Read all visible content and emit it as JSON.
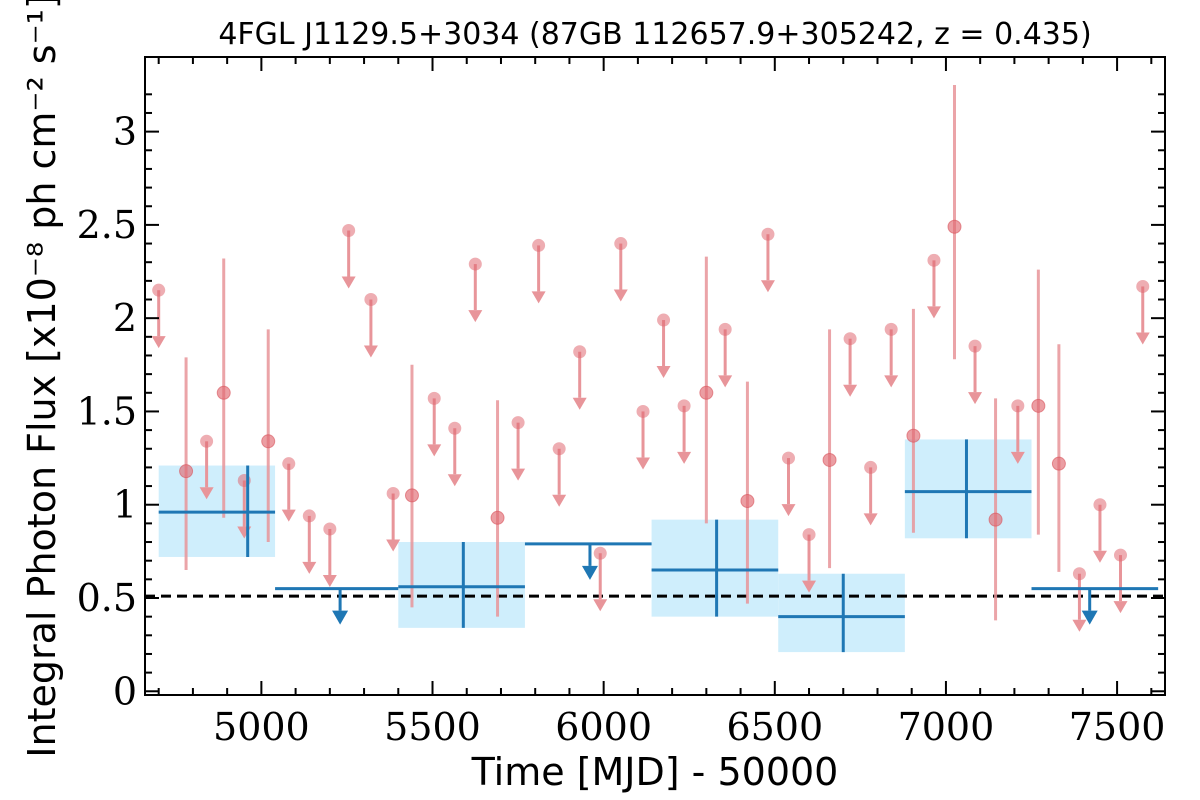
{
  "chart_data": {
    "type": "scatter",
    "title": "4FGL J1129.5+3034 (87GB 112657.9+305242, z = 0.435)",
    "xlabel": "Time [MJD] - 50000",
    "ylabel": "Integral Photon Flux [x10⁻⁸ ph cm⁻² s⁻¹]",
    "xlim": [
      4660,
      7640
    ],
    "ylim": [
      -0.02,
      3.4
    ],
    "x_ticks": [
      5000,
      5500,
      6000,
      6500,
      7000,
      7500
    ],
    "x_tick_labels": [
      "5000",
      "5500",
      "6000",
      "6500",
      "7000",
      "7500"
    ],
    "y_ticks": [
      0,
      0.5,
      1,
      1.5,
      2,
      2.5,
      3
    ],
    "y_tick_labels": [
      "0",
      "0.5",
      "1",
      "1.5",
      "2",
      "2.5",
      "3"
    ],
    "reference_line": {
      "y": 0.51,
      "style": "dashed",
      "color": "#000000"
    },
    "colors": {
      "short_bins": "#e8959a",
      "long_bins": "#1f77b4",
      "long_bins_box": "#cfeefc"
    },
    "series": [
      {
        "points": [
          {
            "x": 4780,
            "y": 1.18,
            "lo": 0.65,
            "hi": 1.79
          },
          {
            "x": 4890,
            "y": 1.6,
            "lo": 0.93,
            "hi": 2.32
          },
          {
            "x": 5020,
            "y": 1.34,
            "lo": 0.8,
            "hi": 1.94
          },
          {
            "x": 5440,
            "y": 1.05,
            "lo": 0.45,
            "hi": 1.75
          },
          {
            "x": 5690,
            "y": 0.93,
            "lo": 0.4,
            "hi": 1.56
          },
          {
            "x": 6300,
            "y": 1.6,
            "lo": 0.9,
            "hi": 2.33
          },
          {
            "x": 6420,
            "y": 1.02,
            "lo": 0.47,
            "hi": 1.66
          },
          {
            "x": 6660,
            "y": 1.24,
            "lo": 0.66,
            "hi": 1.94
          },
          {
            "x": 6905,
            "y": 1.37,
            "lo": 0.85,
            "hi": 2.05
          },
          {
            "x": 7025,
            "y": 2.49,
            "lo": 1.78,
            "hi": 3.25
          },
          {
            "x": 7145,
            "y": 0.92,
            "lo": 0.38,
            "hi": 1.57
          },
          {
            "x": 7270,
            "y": 1.53,
            "lo": 0.84,
            "hi": 2.26
          },
          {
            "x": 7330,
            "y": 1.22,
            "lo": 0.64,
            "hi": 1.86
          }
        ],
        "upper_limits": [
          {
            "x": 4700,
            "y": 2.15
          },
          {
            "x": 4840,
            "y": 1.34
          },
          {
            "x": 4950,
            "y": 1.13
          },
          {
            "x": 5080,
            "y": 1.22
          },
          {
            "x": 5140,
            "y": 0.94
          },
          {
            "x": 5200,
            "y": 0.87
          },
          {
            "x": 5255,
            "y": 2.47
          },
          {
            "x": 5320,
            "y": 2.1
          },
          {
            "x": 5385,
            "y": 1.06
          },
          {
            "x": 5505,
            "y": 1.57
          },
          {
            "x": 5565,
            "y": 1.41
          },
          {
            "x": 5625,
            "y": 2.29
          },
          {
            "x": 5750,
            "y": 1.44
          },
          {
            "x": 5870,
            "y": 1.3
          },
          {
            "x": 5810,
            "y": 2.39
          },
          {
            "x": 5930,
            "y": 1.82
          },
          {
            "x": 5990,
            "y": 0.74
          },
          {
            "x": 6050,
            "y": 2.4
          },
          {
            "x": 6115,
            "y": 1.5
          },
          {
            "x": 6175,
            "y": 1.99
          },
          {
            "x": 6235,
            "y": 1.53
          },
          {
            "x": 6355,
            "y": 1.94
          },
          {
            "x": 6480,
            "y": 2.45
          },
          {
            "x": 6540,
            "y": 1.25
          },
          {
            "x": 6600,
            "y": 0.84
          },
          {
            "x": 6720,
            "y": 1.89
          },
          {
            "x": 6780,
            "y": 1.2
          },
          {
            "x": 6840,
            "y": 1.94
          },
          {
            "x": 6965,
            "y": 2.31
          },
          {
            "x": 7085,
            "y": 1.85
          },
          {
            "x": 7210,
            "y": 1.53
          },
          {
            "x": 7390,
            "y": 0.63
          },
          {
            "x": 7450,
            "y": 1.0
          },
          {
            "x": 7510,
            "y": 0.73
          },
          {
            "x": 7575,
            "y": 2.17
          }
        ]
      },
      {
        "points": [
          {
            "x0": 4700,
            "x1": 5040,
            "xc": 4960,
            "y": 0.96,
            "lo": 0.72,
            "hi": 1.21,
            "box_lo": 0.72,
            "box_hi": 1.21
          },
          {
            "x0": 5400,
            "x1": 5770,
            "xc": 5590,
            "y": 0.56,
            "lo": 0.34,
            "hi": 0.8,
            "box_lo": 0.34,
            "box_hi": 0.8
          },
          {
            "x0": 6140,
            "x1": 6510,
            "xc": 6330,
            "y": 0.65,
            "lo": 0.4,
            "hi": 0.92,
            "box_lo": 0.4,
            "box_hi": 0.92
          },
          {
            "x0": 6510,
            "x1": 6880,
            "xc": 6700,
            "y": 0.4,
            "lo": 0.21,
            "hi": 0.63,
            "box_lo": 0.21,
            "box_hi": 0.63
          },
          {
            "x0": 6880,
            "x1": 7250,
            "xc": 7060,
            "y": 1.07,
            "lo": 0.82,
            "hi": 1.35,
            "box_lo": 0.82,
            "box_hi": 1.35
          }
        ],
        "upper_limits": [
          {
            "x0": 5040,
            "x1": 5400,
            "xc": 5230,
            "y": 0.55
          },
          {
            "x0": 5770,
            "x1": 6140,
            "xc": 5960,
            "y": 0.79
          },
          {
            "x0": 7250,
            "x1": 7620,
            "xc": 7420,
            "y": 0.55
          }
        ]
      }
    ]
  }
}
